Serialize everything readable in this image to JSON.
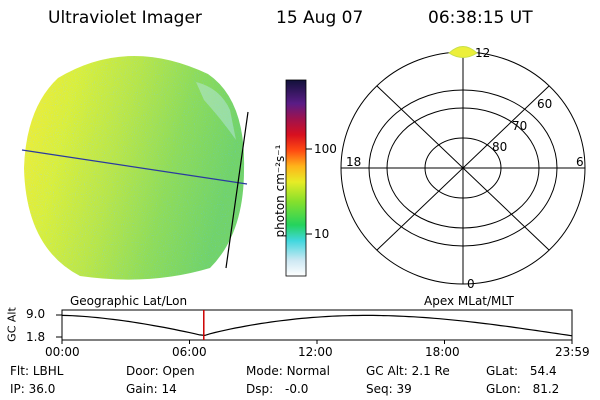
{
  "header": {
    "instrument": "Ultraviolet Imager",
    "date": "15 Aug 07",
    "time": "06:38:15 UT"
  },
  "colorbar": {
    "label": "photon cm⁻²s⁻¹",
    "ticks": [
      "100",
      "10"
    ],
    "scale": "log"
  },
  "polar_plot": {
    "mlt_labels": {
      "top": "12",
      "left": "18",
      "right": "6",
      "bottom": "0"
    },
    "lat_labels": [
      "60",
      "70",
      "80"
    ]
  },
  "timeline": {
    "left_title": "Geographic Lat/Lon",
    "right_title": "Apex MLat/MLT",
    "y_axis_label": "GC Alt",
    "y_ticks": [
      "9.0",
      "1.8"
    ],
    "x_ticks": [
      "00:00",
      "06:00",
      "12:00",
      "18:00",
      "23:59"
    ],
    "marker_color": "#cc0000"
  },
  "status": {
    "row1": [
      {
        "key": "Flt:",
        "value": "LBHL"
      },
      {
        "key": "Door:",
        "value": "Open"
      },
      {
        "key": "Mode:",
        "value": "Normal"
      },
      {
        "key": "GC Alt:",
        "value": "2.1 Re"
      },
      {
        "key": "GLat:",
        "value": "54.4"
      }
    ],
    "row2": [
      {
        "key": "IP:",
        "value": "36.0"
      },
      {
        "key": "Gain:",
        "value": "14"
      },
      {
        "key": "Dsp:",
        "value": "-0.0"
      },
      {
        "key": "Seq:",
        "value": "39"
      },
      {
        "key": "GLon:",
        "value": "81.2"
      }
    ]
  },
  "colors": {
    "earth_yellow": "#d4ef3a",
    "earth_green": "#8fdc5a",
    "map_line": "#2a3aa0"
  }
}
